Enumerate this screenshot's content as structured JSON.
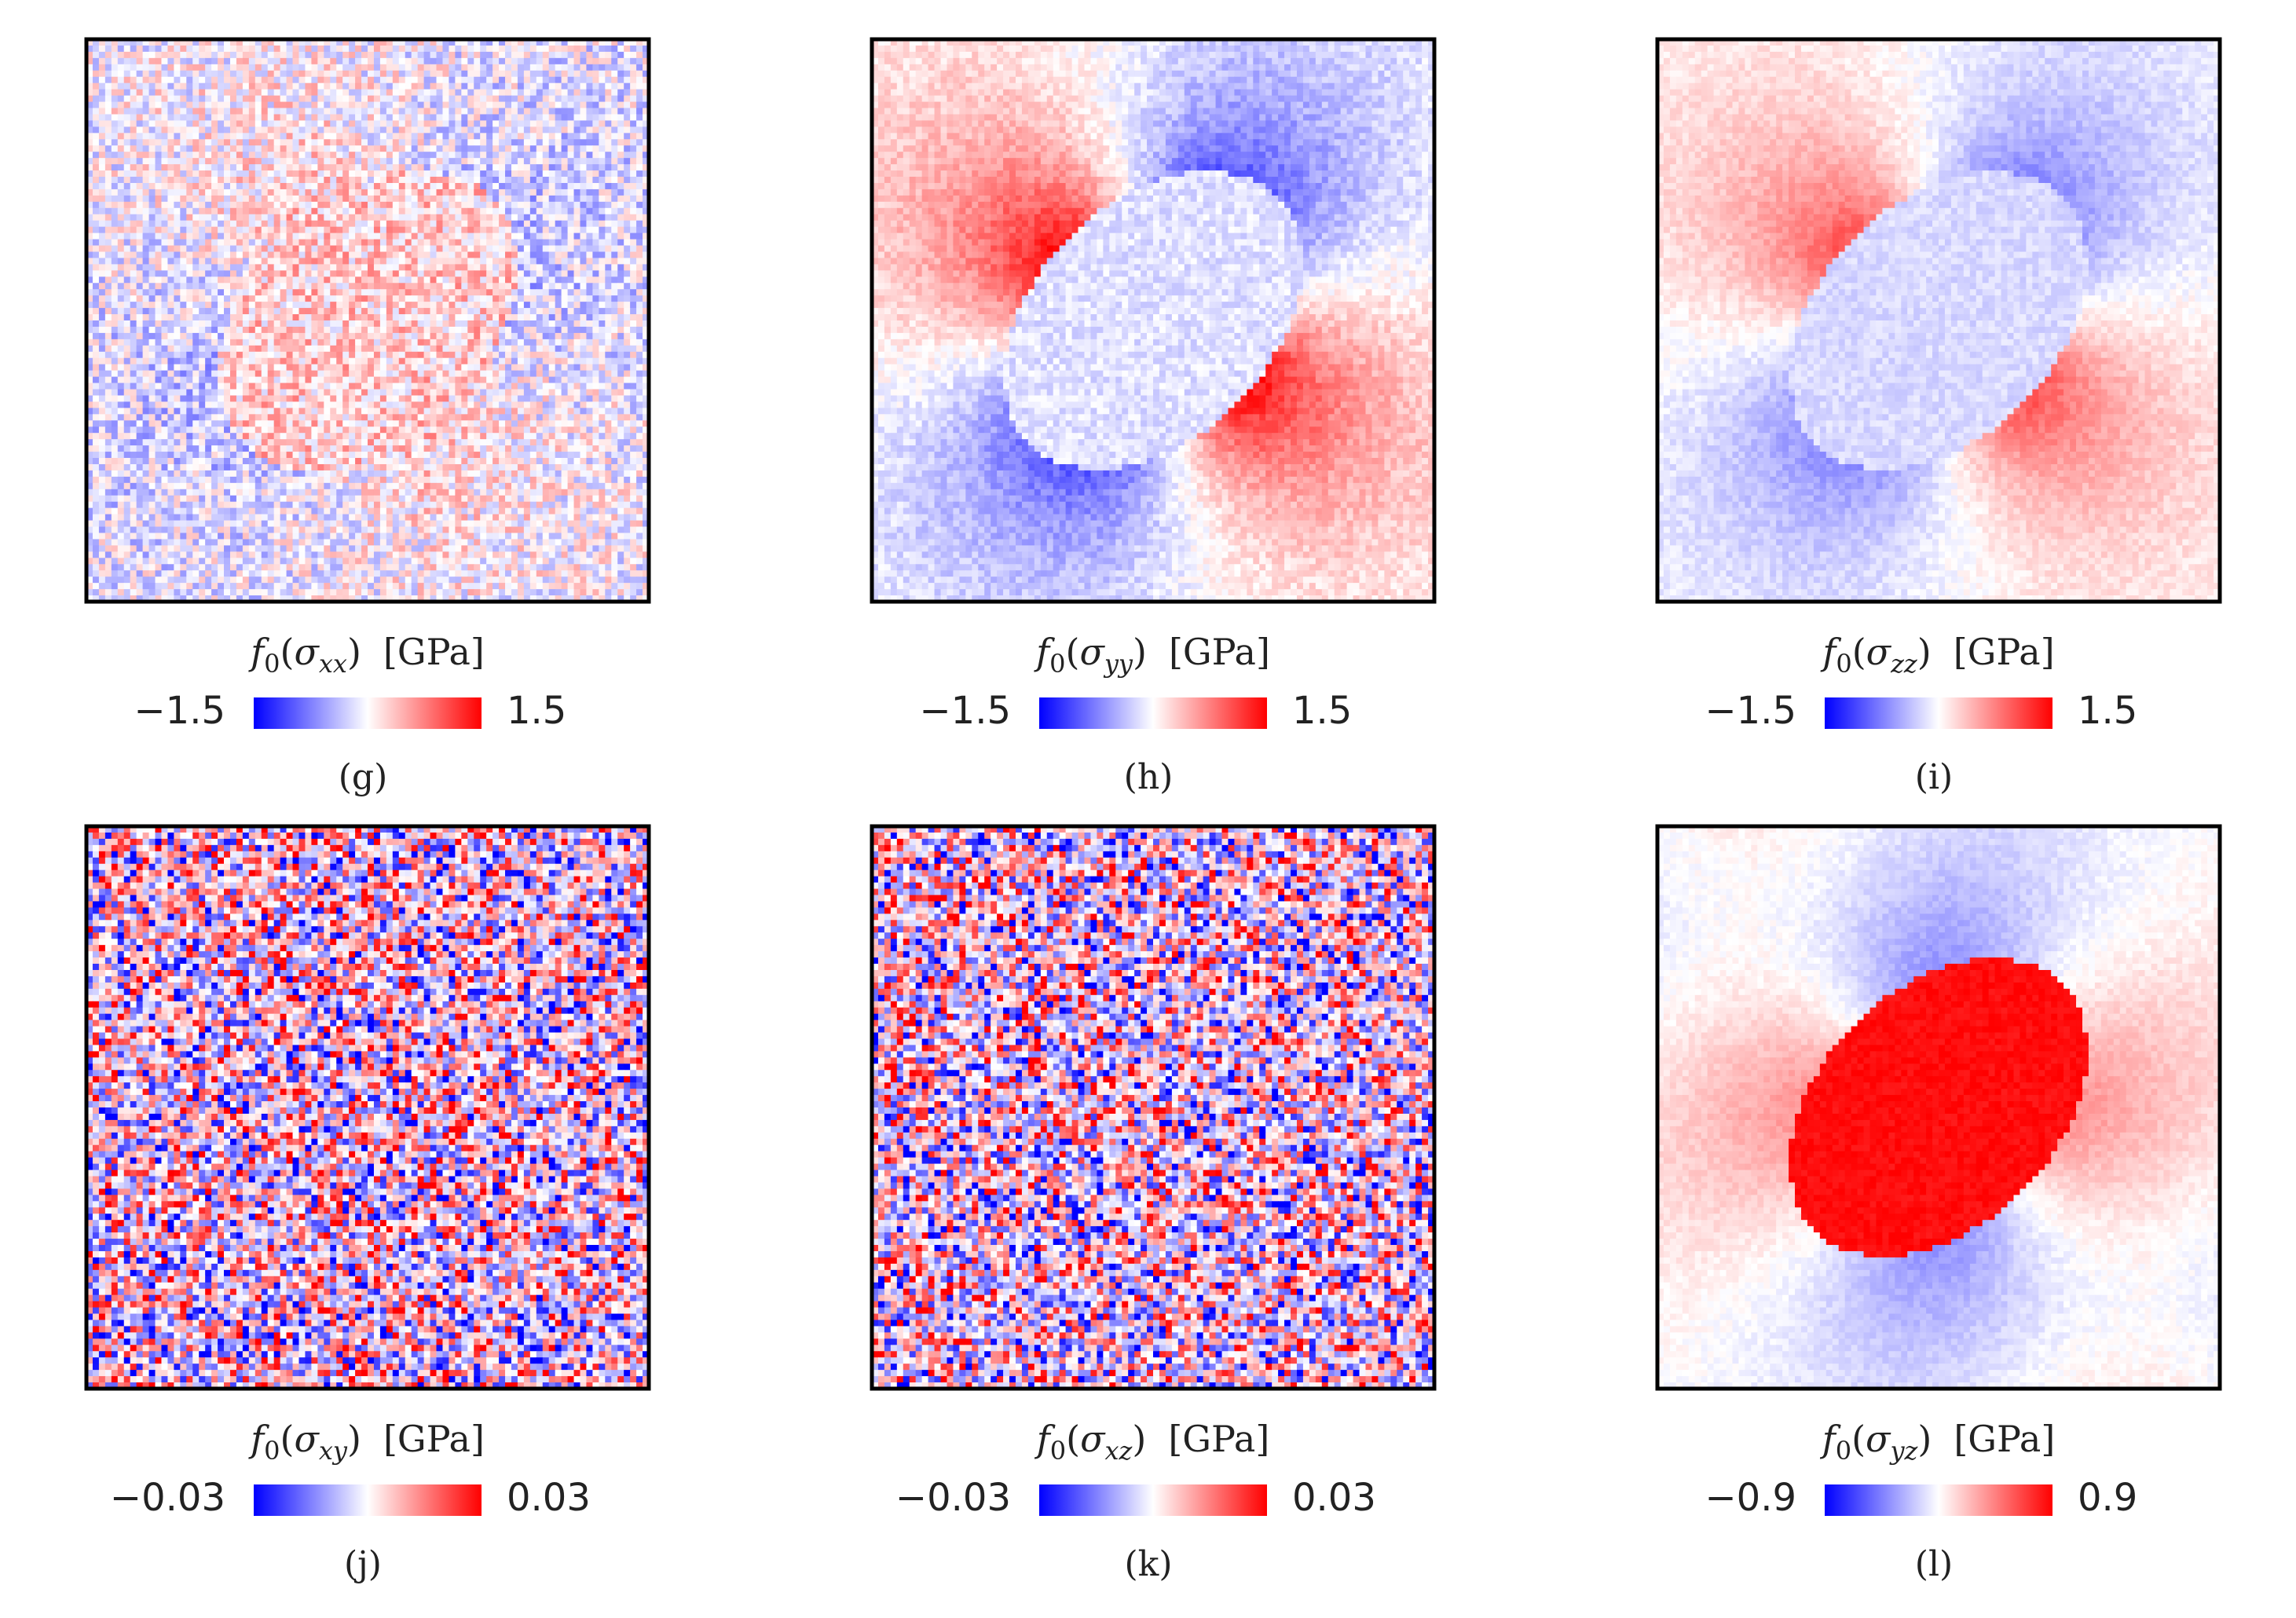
{
  "figure": {
    "colormap": {
      "name": "bwr",
      "low": "#0000ff",
      "mid": "#ffffff",
      "high": "#ff0000"
    },
    "unit": "[GPa]"
  },
  "chart_data": [
    {
      "type": "heatmap",
      "id": "g",
      "panel_label": "(g)",
      "quantity": "σ",
      "subscript": "xx",
      "cbar_label_unit": "[GPa]",
      "vmin": -1.5,
      "vmax": 1.5,
      "vmin_label": "−1.5",
      "vmax_label": "1.5",
      "pattern": "inclusion-xx",
      "noise": 0.35
    },
    {
      "type": "heatmap",
      "id": "h",
      "panel_label": "(h)",
      "quantity": "σ",
      "subscript": "yy",
      "cbar_label_unit": "[GPa]",
      "vmin": -1.5,
      "vmax": 1.5,
      "vmin_label": "−1.5",
      "vmax_label": "1.5",
      "pattern": "inclusion-yy",
      "noise": 0.12
    },
    {
      "type": "heatmap",
      "id": "i",
      "panel_label": "(i)",
      "quantity": "σ",
      "subscript": "zz",
      "cbar_label_unit": "[GPa]",
      "vmin": -1.5,
      "vmax": 1.5,
      "vmin_label": "−1.5",
      "vmax_label": "1.5",
      "pattern": "inclusion-zz",
      "noise": 0.08
    },
    {
      "type": "heatmap",
      "id": "j",
      "panel_label": "(j)",
      "quantity": "σ",
      "subscript": "xy",
      "cbar_label_unit": "[GPa]",
      "vmin": -0.03,
      "vmax": 0.03,
      "vmin_label": "−0.03",
      "vmax_label": "0.03",
      "pattern": "noise",
      "noise": 0.9
    },
    {
      "type": "heatmap",
      "id": "k",
      "panel_label": "(k)",
      "quantity": "σ",
      "subscript": "xz",
      "cbar_label_unit": "[GPa]",
      "vmin": -0.03,
      "vmax": 0.03,
      "vmin_label": "−0.03",
      "vmax_label": "0.03",
      "pattern": "noise",
      "noise": 0.9
    },
    {
      "type": "heatmap",
      "id": "l",
      "panel_label": "(l)",
      "quantity": "σ",
      "subscript": "yz",
      "cbar_label_unit": "[GPa]",
      "vmin": -0.9,
      "vmax": 0.9,
      "vmin_label": "−0.9",
      "vmax_label": "0.9",
      "pattern": "inclusion-yz",
      "noise": 0.06
    }
  ]
}
